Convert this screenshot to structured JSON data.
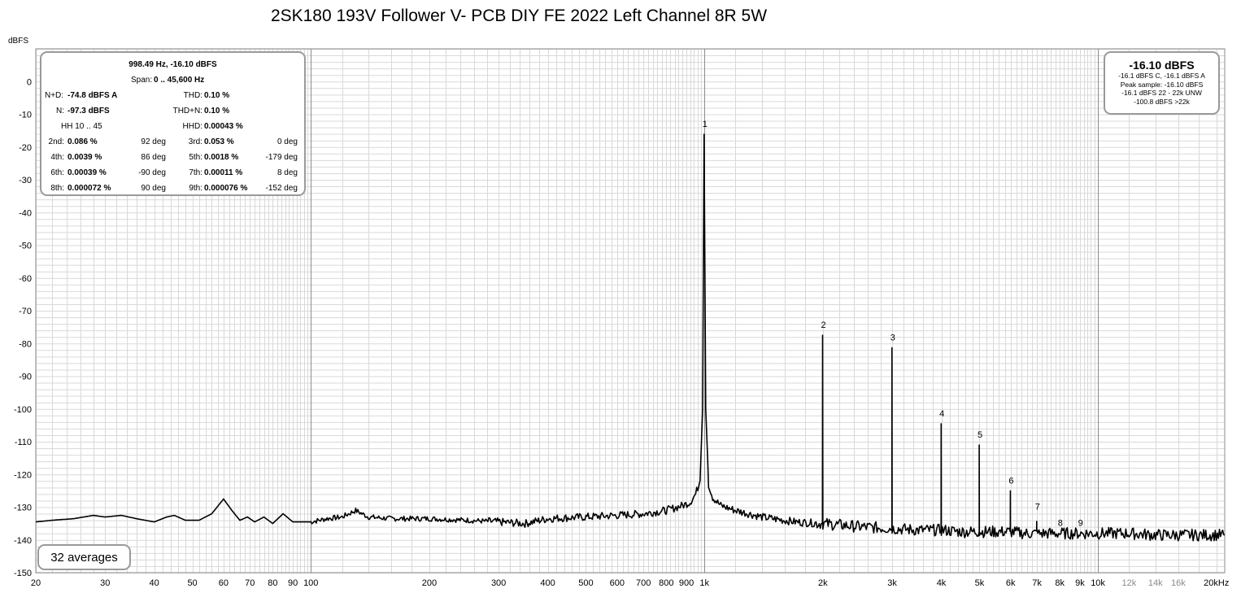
{
  "title": "2SK180 193V Follower V- PCB DIY FE 2022 Left Channel 8R 5W",
  "stats": {
    "header": "998.49 Hz, -16.10 dBFS",
    "span_label": "Span:",
    "span_value": "0 .. 45,600 Hz",
    "nd_label": "N+D:",
    "nd_value": "-74.8 dBFS A",
    "thd_label": "THD:",
    "thd_value": "0.10 %",
    "n_label": "N:",
    "n_value": "-97.3 dBFS",
    "thdn_label": "THD+N:",
    "thdn_value": "0.10 %",
    "hh_label": "HH 10 .. 45",
    "hhd_label": "HHD:",
    "hhd_value": "0.00043 %",
    "harmonics": [
      {
        "label": "2nd:",
        "value": "0.086 %",
        "deg": "92 deg",
        "label2": "3rd:",
        "value2": "0.053 %",
        "deg2": "0 deg"
      },
      {
        "label": "4th:",
        "value": "0.0039 %",
        "deg": "86 deg",
        "label2": "5th:",
        "value2": "0.0018 %",
        "deg2": "-179 deg"
      },
      {
        "label": "6th:",
        "value": "0.00039 %",
        "deg": "-90 deg",
        "label2": "7th:",
        "value2": "0.00011 %",
        "deg2": "8 deg"
      },
      {
        "label": "8th:",
        "value": "0.000072 %",
        "deg": "90 deg",
        "label2": "9th:",
        "value2": "0.000076 %",
        "deg2": "-152 deg"
      }
    ]
  },
  "level": {
    "main": "-16.10 dBFS",
    "lines": [
      "-16.1 dBFS C, -16.1 dBFS A",
      "Peak sample: -16.10 dBFS",
      "-16.1 dBFS 22 - 22k UNW",
      "-100.8 dBFS >22k"
    ]
  },
  "averages": "32 averages",
  "chart_data": {
    "type": "line",
    "title": "2SK180 193V Follower V- PCB DIY FE 2022 Left Channel 8R 5W",
    "ylabel": "dBFS",
    "xlabel": "",
    "x_scale": "log",
    "xlim": [
      20,
      21000
    ],
    "ylim": [
      -150,
      10
    ],
    "grid": true,
    "y_ticks": [
      0,
      -10,
      -20,
      -30,
      -40,
      -50,
      -60,
      -70,
      -80,
      -90,
      -100,
      -110,
      -120,
      -130,
      -140,
      -150
    ],
    "x_ticks": [
      {
        "v": 20,
        "l": "20"
      },
      {
        "v": 30,
        "l": "30"
      },
      {
        "v": 40,
        "l": "40"
      },
      {
        "v": 50,
        "l": "50"
      },
      {
        "v": 60,
        "l": "60"
      },
      {
        "v": 70,
        "l": "70"
      },
      {
        "v": 80,
        "l": "80"
      },
      {
        "v": 90,
        "l": "90"
      },
      {
        "v": 100,
        "l": "100"
      },
      {
        "v": 200,
        "l": "200"
      },
      {
        "v": 300,
        "l": "300"
      },
      {
        "v": 400,
        "l": "400"
      },
      {
        "v": 500,
        "l": "500"
      },
      {
        "v": 600,
        "l": "600"
      },
      {
        "v": 700,
        "l": "700"
      },
      {
        "v": 800,
        "l": "800"
      },
      {
        "v": 900,
        "l": "900"
      },
      {
        "v": 1000,
        "l": "1k"
      },
      {
        "v": 2000,
        "l": "2k"
      },
      {
        "v": 3000,
        "l": "3k"
      },
      {
        "v": 4000,
        "l": "4k"
      },
      {
        "v": 5000,
        "l": "5k"
      },
      {
        "v": 6000,
        "l": "6k"
      },
      {
        "v": 7000,
        "l": "7k"
      },
      {
        "v": 8000,
        "l": "8k"
      },
      {
        "v": 9000,
        "l": "9k"
      },
      {
        "v": 10000,
        "l": "10k"
      },
      {
        "v": 12000,
        "l": "12k"
      },
      {
        "v": 14000,
        "l": "14k"
      },
      {
        "v": 16000,
        "l": "16k"
      },
      {
        "v": 20000,
        "l": "20kHz"
      }
    ],
    "series": [
      {
        "points": [
          [
            20,
            -134.5
          ],
          [
            22,
            -134
          ],
          [
            25,
            -133.5
          ],
          [
            28,
            -132.5
          ],
          [
            30,
            -133
          ],
          [
            33,
            -132.5
          ],
          [
            36,
            -133.5
          ],
          [
            40,
            -134.5
          ],
          [
            43,
            -133
          ],
          [
            45,
            -132.5
          ],
          [
            48,
            -134
          ],
          [
            52,
            -134
          ],
          [
            56,
            -132
          ],
          [
            60,
            -127.5
          ],
          [
            63,
            -131
          ],
          [
            66,
            -134
          ],
          [
            69,
            -133
          ],
          [
            72,
            -134.5
          ],
          [
            76,
            -133
          ],
          [
            80,
            -135
          ],
          [
            85,
            -132
          ],
          [
            90,
            -134.5
          ],
          [
            95,
            -134.5
          ],
          [
            100,
            -134.5
          ],
          [
            110,
            -133.5
          ],
          [
            120,
            -133
          ],
          [
            130,
            -131
          ],
          [
            140,
            -133
          ],
          [
            160,
            -133.5
          ],
          [
            180,
            -133.5
          ],
          [
            200,
            -133.5
          ],
          [
            250,
            -134
          ],
          [
            300,
            -134.5
          ],
          [
            350,
            -135
          ],
          [
            400,
            -133.5
          ],
          [
            500,
            -133
          ],
          [
            600,
            -132.5
          ],
          [
            700,
            -132
          ],
          [
            800,
            -131
          ],
          [
            880,
            -129.5
          ],
          [
            920,
            -128.5
          ],
          [
            950,
            -126
          ],
          [
            975,
            -122
          ],
          [
            990,
            -100
          ],
          [
            998.5,
            -16.1
          ],
          [
            1008,
            -100
          ],
          [
            1025,
            -123
          ],
          [
            1050,
            -127
          ],
          [
            1100,
            -129.5
          ],
          [
            1200,
            -131
          ],
          [
            1400,
            -133
          ],
          [
            1700,
            -134.5
          ],
          [
            1995,
            -135
          ],
          [
            1997,
            -77.5
          ],
          [
            2000,
            -135
          ],
          [
            2500,
            -136
          ],
          [
            2995,
            -136.5
          ],
          [
            2997,
            -81.3
          ],
          [
            3000,
            -136.5
          ],
          [
            3500,
            -137
          ],
          [
            3995,
            -137
          ],
          [
            3997,
            -104.5
          ],
          [
            4000,
            -137
          ],
          [
            4500,
            -137.5
          ],
          [
            4992,
            -137.5
          ],
          [
            4994,
            -111
          ],
          [
            4997,
            -137.5
          ],
          [
            5500,
            -137.5
          ],
          [
            5987,
            -137.5
          ],
          [
            5991,
            -125
          ],
          [
            5995,
            -137.5
          ],
          [
            6500,
            -138
          ],
          [
            6985,
            -138
          ],
          [
            6989,
            -133
          ],
          [
            6993,
            -138
          ],
          [
            7500,
            -138
          ],
          [
            8000,
            -138
          ],
          [
            9000,
            -138
          ],
          [
            10000,
            -138
          ],
          [
            12000,
            -138
          ],
          [
            14000,
            -138.5
          ],
          [
            16000,
            -138.5
          ],
          [
            18000,
            -138.5
          ],
          [
            21000,
            -138.5
          ]
        ]
      }
    ],
    "harmonic_markers": [
      {
        "label": "1",
        "freq": 998.5,
        "level": -16.1
      },
      {
        "label": "2",
        "freq": 1997,
        "level": -77.5
      },
      {
        "label": "3",
        "freq": 2996,
        "level": -81.3
      },
      {
        "label": "4",
        "freq": 3994,
        "level": -104.5
      },
      {
        "label": "5",
        "freq": 4993,
        "level": -111
      },
      {
        "label": "6",
        "freq": 5991,
        "level": -125
      },
      {
        "label": "7",
        "freq": 6990,
        "level": -133
      },
      {
        "label": "8",
        "freq": 7988,
        "level": -138
      },
      {
        "label": "9",
        "freq": 8987,
        "level": -138
      }
    ],
    "colors": {
      "trace": "#000000",
      "grid": "#d9d9d9",
      "grid_major": "#8c8c8c",
      "box_border": "#9a9a9a",
      "tick_faint": "#8a8a8a"
    }
  }
}
